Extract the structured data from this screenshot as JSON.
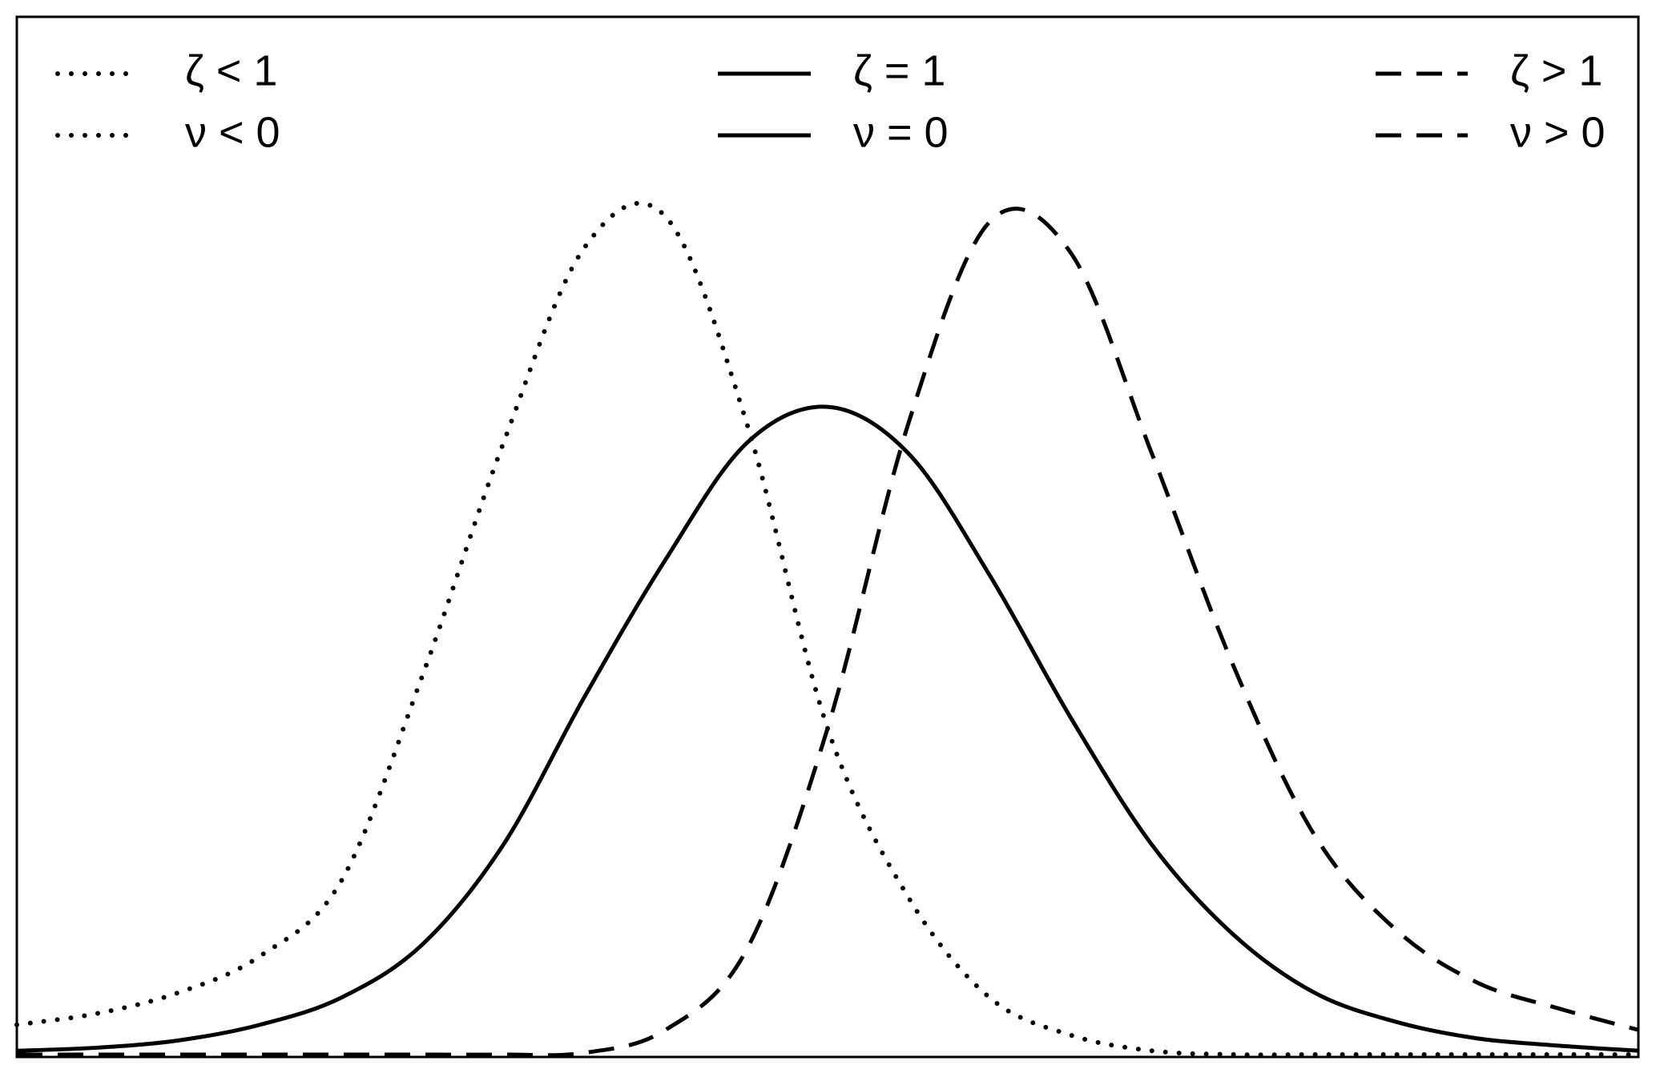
{
  "chart_data": {
    "type": "line",
    "x": [
      0,
      5,
      10,
      15,
      20,
      25,
      30,
      35,
      40,
      45,
      50,
      55,
      60,
      65,
      70,
      75,
      80,
      85,
      90,
      95,
      100
    ],
    "xlim": [
      0,
      100
    ],
    "ylim": [
      0,
      100
    ],
    "legend": "top",
    "series": [
      {
        "name": "ζ < 1",
        "name2": "ν < 0",
        "style": "dotted",
        "color": "#000000",
        "values": [
          3.1,
          4.2,
          6.2,
          9.7,
          16.9,
          36.6,
          59,
          77.8,
          80.8,
          61,
          31.6,
          15.3,
          5.7,
          2.1,
          0.6,
          0.2,
          0,
          0,
          0,
          0,
          0
        ]
      },
      {
        "name": "ζ = 1",
        "name2": "ν = 0",
        "style": "solid",
        "color": "#000000",
        "values": [
          0.6,
          0.9,
          1.6,
          3.1,
          5.7,
          10.8,
          20.4,
          34.6,
          47.8,
          59,
          62.5,
          58,
          46.3,
          32.6,
          20.4,
          11.8,
          6.2,
          3.4,
          1.8,
          1.1,
          0.6
        ]
      },
      {
        "name": "ζ > 1",
        "name2": "ν > 0",
        "style": "dashed",
        "color": "#000000",
        "values": [
          0.1,
          0.1,
          0.1,
          0.1,
          0.1,
          0.1,
          0.2,
          0.4,
          2.6,
          10.3,
          31.6,
          61,
          80.3,
          77.3,
          58,
          37.7,
          21.4,
          12.3,
          7.2,
          4.7,
          2.6
        ]
      }
    ]
  }
}
